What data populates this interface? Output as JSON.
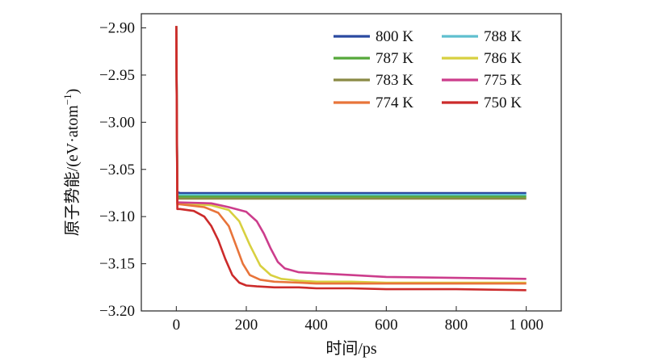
{
  "chart_data": {
    "type": "line",
    "title": "",
    "xlabel": "时间/ps",
    "ylabel": "原子势能/(eV·atom",
    "ylabel_sup": "−1",
    "ylabel_close": ")",
    "xlim": [
      -100,
      1100
    ],
    "ylim": [
      -3.2,
      -2.885
    ],
    "x_ticks": [
      0,
      200,
      400,
      600,
      800,
      1000
    ],
    "x_tick_labels": [
      "0",
      "200",
      "400",
      "600",
      "800",
      "1 000"
    ],
    "y_ticks": [
      -3.2,
      -3.15,
      -3.1,
      -3.05,
      -3.0,
      -2.95,
      -2.9
    ],
    "y_tick_labels": [
      "−3.20",
      "−3.15",
      "−3.10",
      "−3.05",
      "−3.00",
      "−2.95",
      "−2.90"
    ],
    "grid": false,
    "legend_position": "top-right",
    "series": [
      {
        "name": "800 K",
        "color": "#2b4aa0",
        "x": [
          0,
          3,
          10,
          1000
        ],
        "y": [
          -2.898,
          -3.074,
          -3.075,
          -3.075
        ]
      },
      {
        "name": "788 K",
        "color": "#5fbfcf",
        "x": [
          0,
          3,
          10,
          1000
        ],
        "y": [
          -2.898,
          -3.077,
          -3.077,
          -3.077
        ]
      },
      {
        "name": "787 K",
        "color": "#55a83a",
        "x": [
          0,
          3,
          10,
          1000
        ],
        "y": [
          -2.898,
          -3.079,
          -3.079,
          -3.079
        ]
      },
      {
        "name": "786 K",
        "color": "#d8d040",
        "x": [
          0,
          3,
          10,
          100,
          150,
          180,
          210,
          240,
          270,
          300,
          350,
          400,
          500,
          600,
          800,
          1000
        ],
        "y": [
          -2.898,
          -3.086,
          -3.086,
          -3.088,
          -3.093,
          -3.105,
          -3.13,
          -3.152,
          -3.162,
          -3.166,
          -3.168,
          -3.169,
          -3.169,
          -3.17,
          -3.17,
          -3.17
        ]
      },
      {
        "name": "783 K",
        "color": "#8a8a45",
        "x": [
          0,
          3,
          10,
          1000
        ],
        "y": [
          -2.898,
          -3.081,
          -3.081,
          -3.081
        ]
      },
      {
        "name": "775 K",
        "color": "#cc3d8c",
        "x": [
          0,
          3,
          10,
          100,
          150,
          200,
          230,
          250,
          270,
          290,
          310,
          350,
          400,
          500,
          600,
          800,
          1000
        ],
        "y": [
          -2.898,
          -3.085,
          -3.085,
          -3.086,
          -3.09,
          -3.095,
          -3.105,
          -3.118,
          -3.134,
          -3.148,
          -3.155,
          -3.159,
          -3.16,
          -3.162,
          -3.164,
          -3.165,
          -3.166
        ]
      },
      {
        "name": "774 K",
        "color": "#e8743a",
        "x": [
          0,
          3,
          10,
          80,
          120,
          150,
          170,
          190,
          210,
          240,
          280,
          350,
          400,
          500,
          600,
          800,
          1000
        ],
        "y": [
          -2.898,
          -3.087,
          -3.087,
          -3.09,
          -3.096,
          -3.11,
          -3.13,
          -3.15,
          -3.162,
          -3.167,
          -3.169,
          -3.17,
          -3.171,
          -3.171,
          -3.171,
          -3.171,
          -3.171
        ]
      },
      {
        "name": "750 K",
        "color": "#cc2b2b",
        "x": [
          0,
          3,
          10,
          50,
          80,
          100,
          120,
          140,
          160,
          180,
          200,
          230,
          280,
          350,
          400,
          500,
          600,
          800,
          1000
        ],
        "y": [
          -2.898,
          -3.092,
          -3.092,
          -3.094,
          -3.1,
          -3.11,
          -3.125,
          -3.145,
          -3.162,
          -3.17,
          -3.173,
          -3.174,
          -3.175,
          -3.175,
          -3.176,
          -3.176,
          -3.177,
          -3.177,
          -3.178
        ]
      }
    ]
  }
}
